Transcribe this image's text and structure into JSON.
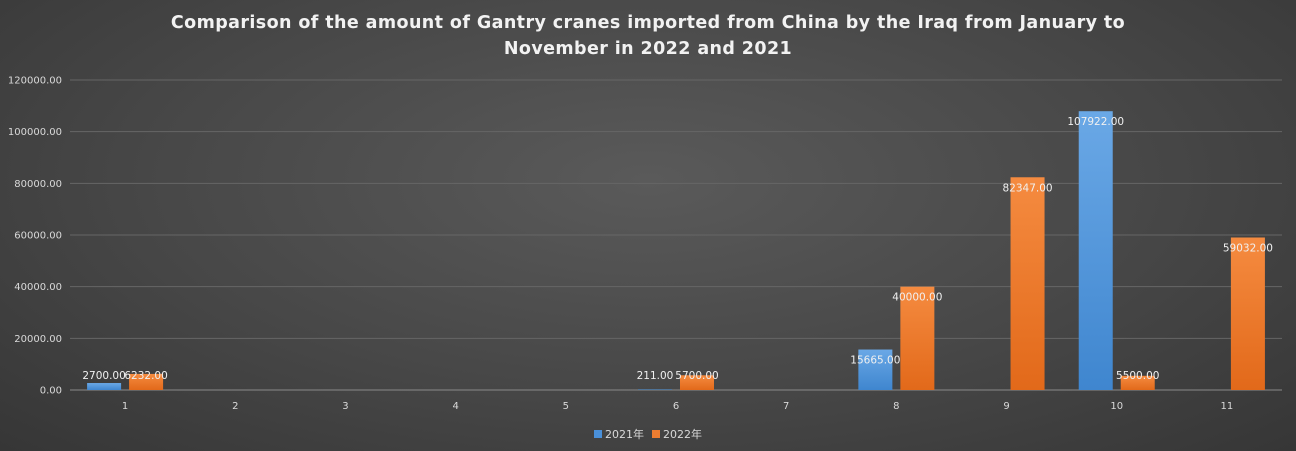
{
  "title_line1": "Comparison of the amount of Gantry cranes imported from China by the Iraq from January to",
  "title_line2": "November in 2022 and 2021",
  "chart_data": {
    "type": "bar",
    "title": "Comparison of the amount of Gantry cranes imported from China by the Iraq from January to November in 2022 and 2021",
    "categories": [
      "1",
      "2",
      "3",
      "4",
      "5",
      "6",
      "7",
      "8",
      "9",
      "10",
      "11"
    ],
    "yticks": [
      "0.00",
      "20000.00",
      "40000.00",
      "60000.00",
      "80000.00",
      "100000.00",
      "120000.00"
    ],
    "ylim": [
      0,
      120000
    ],
    "grid": true,
    "legend_position": "bottom",
    "series": [
      {
        "name": "2021年",
        "color": "#4a90d9",
        "values": [
          2700,
          null,
          null,
          null,
          null,
          211,
          null,
          15665,
          null,
          107922,
          null
        ],
        "labels": [
          "2700.00",
          "",
          "",
          "",
          "",
          "211.00",
          "",
          "15665.00",
          "",
          "107922.00",
          ""
        ]
      },
      {
        "name": "2022年",
        "color": "#ed7d31",
        "values": [
          6232,
          null,
          null,
          null,
          null,
          5700,
          null,
          40000,
          82347,
          5500,
          59032
        ],
        "labels": [
          "6232.00",
          "",
          "",
          "",
          "",
          "5700.00",
          "",
          "40000.00",
          "82347.00",
          "5500.00",
          "59032.00"
        ]
      }
    ]
  }
}
